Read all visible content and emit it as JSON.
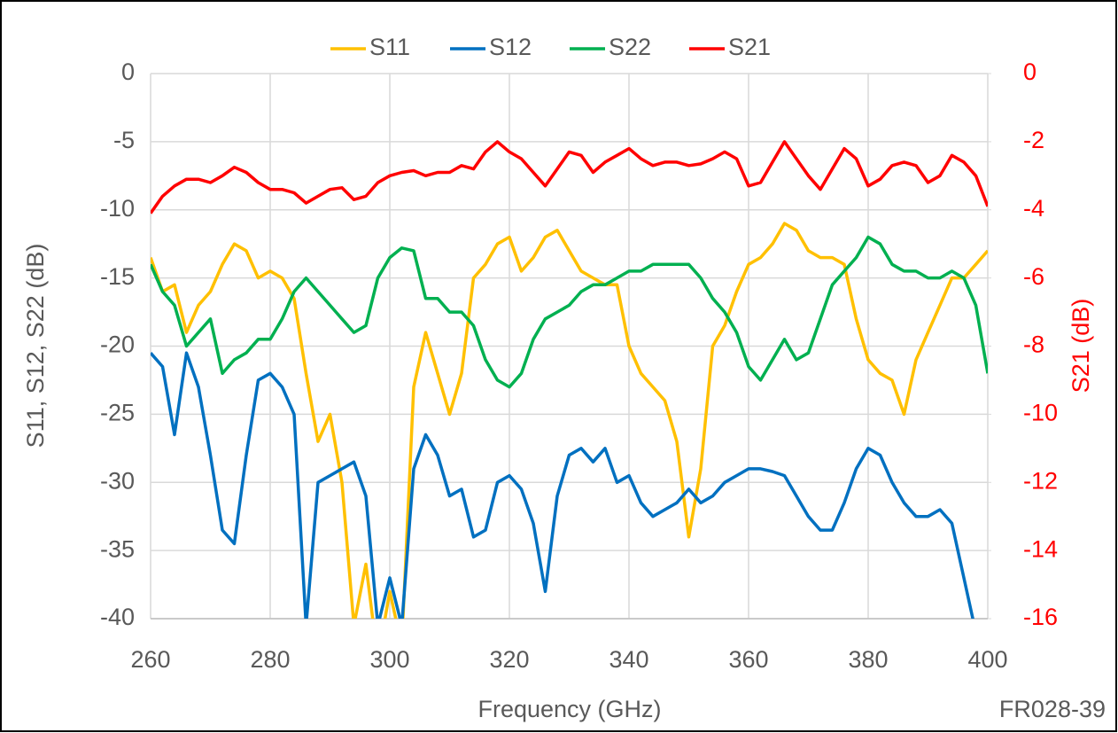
{
  "chart_data": {
    "type": "line",
    "xlabel": "Frequency (GHz)",
    "ylabel": "S11, S12, S22 (dB)",
    "y2label": "S21 (dB)",
    "annotation": "FR028-39",
    "xlim": [
      260,
      400
    ],
    "xticks": [
      260,
      280,
      300,
      320,
      340,
      360,
      380,
      400
    ],
    "ylim": [
      -40,
      0
    ],
    "yticks": [
      -40,
      -35,
      -30,
      -25,
      -20,
      -15,
      -10,
      -5,
      0
    ],
    "y2lim": [
      -16,
      0
    ],
    "y2ticks": [
      -16,
      -14,
      -12,
      -10,
      -8,
      -6,
      -4,
      -2,
      0
    ],
    "grid": true,
    "legend": "top",
    "x": [
      260,
      262,
      264,
      266,
      268,
      270,
      272,
      274,
      276,
      278,
      280,
      282,
      284,
      286,
      288,
      290,
      292,
      294,
      296,
      298,
      300,
      302,
      304,
      306,
      308,
      310,
      312,
      314,
      316,
      318,
      320,
      322,
      324,
      326,
      328,
      330,
      332,
      334,
      336,
      338,
      340,
      342,
      344,
      346,
      348,
      350,
      352,
      354,
      356,
      358,
      360,
      362,
      364,
      366,
      368,
      370,
      372,
      374,
      376,
      378,
      380,
      382,
      384,
      386,
      388,
      390,
      392,
      394,
      396,
      398,
      400
    ],
    "series": [
      {
        "name": "S11",
        "color": "#ffc000",
        "values": [
          -13.5,
          -16,
          -15.5,
          -19,
          -17,
          -16,
          -14,
          -12.5,
          -13,
          -15,
          -14.5,
          -15,
          -16.5,
          -22,
          -27,
          -25,
          -30,
          -40.5,
          -36,
          -43,
          -38,
          -42,
          -23,
          -19,
          -22,
          -25,
          -22,
          -15,
          -14,
          -12.5,
          -12,
          -14.5,
          -13.5,
          -12,
          -11.5,
          -13,
          -14.5,
          -15,
          -15.5,
          -15.5,
          -20,
          -22,
          -23,
          -24,
          -27,
          -34,
          -29,
          -20,
          -18.5,
          -16,
          -14,
          -13.5,
          -12.5,
          -11,
          -11.5,
          -13,
          -13.5,
          -13.5,
          -14,
          -18,
          -21,
          -22,
          -22.5,
          -25,
          -21,
          -19,
          -17,
          -15,
          -15,
          -14,
          -13
        ]
      },
      {
        "name": "S12",
        "color": "#0070c0",
        "values": [
          -20.5,
          -21.5,
          -26.5,
          -20.5,
          -23,
          -28,
          -33.5,
          -34.5,
          -28,
          -22.5,
          -22,
          -23,
          -25,
          -40.5,
          -30,
          -29.5,
          -29,
          -28.5,
          -31,
          -40.5,
          -37,
          -40.5,
          -29,
          -26.5,
          -28,
          -31,
          -30.5,
          -34,
          -33.5,
          -30,
          -29.5,
          -30.5,
          -33,
          -38,
          -31,
          -28,
          -27.5,
          -28.5,
          -27.5,
          -30,
          -29.5,
          -31.5,
          -32.5,
          -32,
          -31.5,
          -30.5,
          -31.5,
          -31,
          -30,
          -29.5,
          -29,
          -29,
          -29.2,
          -29.5,
          -31,
          -32.5,
          -33.5,
          -33.5,
          -31.5,
          -29,
          -27.5,
          -28,
          -30,
          -31.5,
          -32.5,
          -32.5,
          -32,
          -33,
          -37,
          -41,
          -42
        ]
      },
      {
        "name": "S22",
        "color": "#00b050",
        "values": [
          -14,
          -16,
          -17,
          -20,
          -19,
          -18,
          -22,
          -21,
          -20.5,
          -19.5,
          -19.5,
          -18,
          -16,
          -15,
          -16,
          -17,
          -18,
          -19,
          -18.5,
          -15,
          -13.5,
          -12.8,
          -13,
          -16.5,
          -16.5,
          -17.5,
          -17.5,
          -18.5,
          -21,
          -22.5,
          -23,
          -22,
          -19.5,
          -18,
          -17.5,
          -17,
          -16,
          -15.5,
          -15.5,
          -15,
          -14.5,
          -14.5,
          -14,
          -14,
          -14,
          -14,
          -15,
          -16.5,
          -17.5,
          -19,
          -21.5,
          -22.5,
          -21,
          -19.5,
          -21,
          -20.5,
          -18,
          -15.5,
          -14.5,
          -13.5,
          -12,
          -12.5,
          -14,
          -14.5,
          -14.5,
          -15,
          -15,
          -14.5,
          -15,
          -17,
          -22
        ]
      },
      {
        "name": "S21",
        "color": "#ff0000",
        "axis": "y2",
        "values": [
          -4.1,
          -3.6,
          -3.3,
          -3.1,
          -3.1,
          -3.2,
          -3.0,
          -2.75,
          -2.9,
          -3.2,
          -3.4,
          -3.4,
          -3.5,
          -3.8,
          -3.6,
          -3.4,
          -3.35,
          -3.7,
          -3.6,
          -3.2,
          -3.0,
          -2.9,
          -2.85,
          -3.0,
          -2.9,
          -2.9,
          -2.7,
          -2.8,
          -2.3,
          -2.0,
          -2.3,
          -2.5,
          -2.9,
          -3.3,
          -2.8,
          -2.3,
          -2.4,
          -2.9,
          -2.6,
          -2.4,
          -2.2,
          -2.5,
          -2.7,
          -2.6,
          -2.6,
          -2.7,
          -2.65,
          -2.5,
          -2.3,
          -2.5,
          -3.3,
          -3.2,
          -2.6,
          -2.0,
          -2.5,
          -3.0,
          -3.4,
          -2.8,
          -2.2,
          -2.5,
          -3.3,
          -3.1,
          -2.7,
          -2.6,
          -2.7,
          -3.2,
          -3.0,
          -2.4,
          -2.6,
          -3.0,
          -3.9
        ]
      }
    ]
  }
}
